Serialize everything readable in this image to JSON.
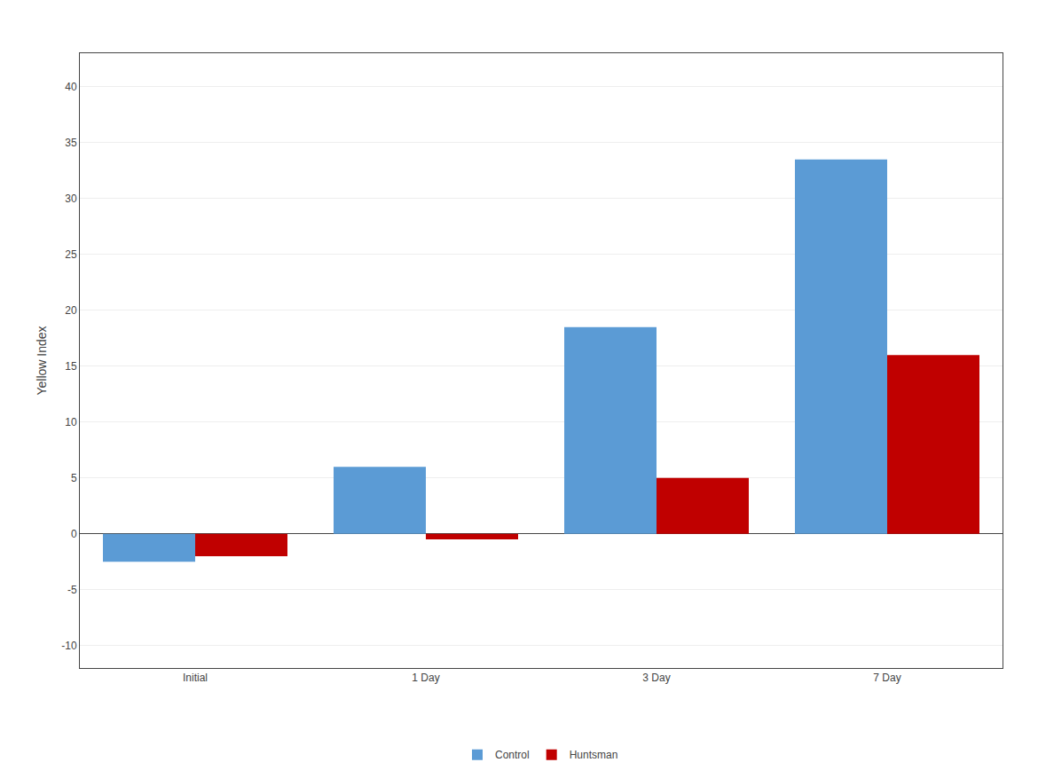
{
  "chart_data": {
    "type": "bar",
    "categories": [
      "Initial",
      "1 Day",
      "3 Day",
      "7 Day"
    ],
    "series": [
      {
        "name": "Control",
        "color": "#5B9BD5",
        "values": [
          -2.5,
          6.0,
          18.5,
          33.5
        ]
      },
      {
        "name": "Huntsman",
        "color": "#C00000",
        "values": [
          -2.0,
          -0.5,
          5.0,
          16.0
        ]
      }
    ],
    "ylabel": "Yellow Index",
    "ylim": [
      -12,
      43
    ],
    "yticks": [
      -10,
      -5,
      0,
      5,
      10,
      15,
      20,
      25,
      30,
      35,
      40
    ],
    "grid": true,
    "legend": "bottom"
  }
}
